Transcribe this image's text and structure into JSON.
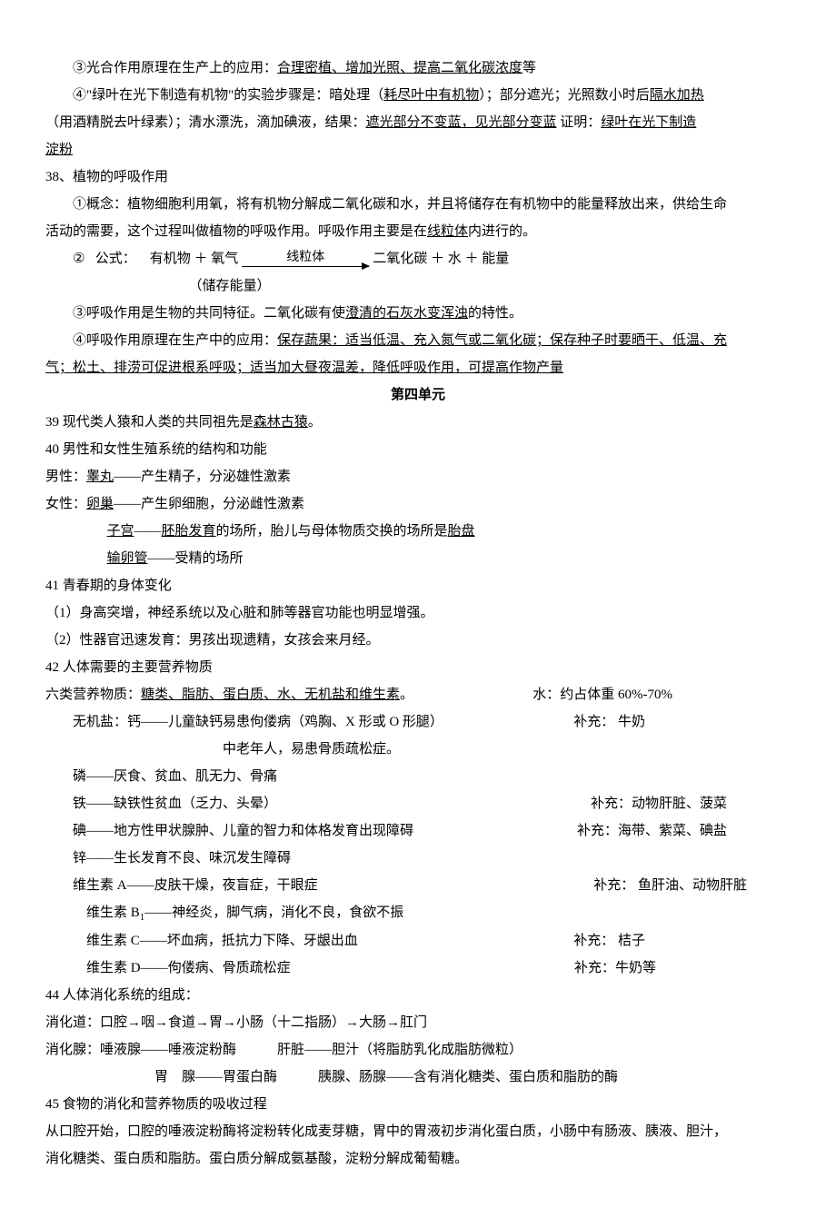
{
  "p1": {
    "pre": "③光合作用原理在生产上的应用：",
    "u": "合理密植、增加光照、提高二氧化碳浓度",
    "post": "等"
  },
  "p2": {
    "a": "④\"绿叶在光下制造有机物\"的实验步骤是：暗处理（",
    "u1": "耗尽叶中有机物",
    "b": "）；部分遮光；光照数小时后",
    "u2": "隔水加热"
  },
  "p3": {
    "a": "（用酒精脱去叶绿素）；清水漂洗，滴加碘液，结果：",
    "u1": "遮光部分不变蓝，见光部分变蓝",
    "b": "  证明：",
    "u2": "绿叶在光下制造"
  },
  "p4u": "淀粉",
  "h38": "38、植物的呼吸作用",
  "p5": {
    "a": "①概念：植物细胞利用氧，将有机物分解成二氧化碳和水，并且将储存在有机物中的能量释放出来，供给生命"
  },
  "p6": {
    "a": "活动的需要，这个过程叫做植物的呼吸作用。呼吸作用主要是在",
    "u": "线粒体",
    "b": "内进行的。"
  },
  "formula": {
    "num": "②",
    "label": "公式：",
    "left": "有机物 ＋ 氧气",
    "top": "线粒体",
    "right": "二氧化碳 ＋ 水 ＋ 能量",
    "note": "（储存能量）"
  },
  "p7": {
    "a": "③呼吸作用是生物的共同特征。二氧化碳有使",
    "u": "澄清的石灰水变浑浊",
    "b": "的特性。"
  },
  "p8": {
    "a": "④呼吸作用原理在生产中的应用：",
    "u": "保存蔬果：适当低温、充入氮气或二氧化碳；保存种子时要晒干、低温、充"
  },
  "p9u": "气；松土、排涝可促进根系呼吸；适当加大昼夜温差，降低呼吸作用，可提高作物产量",
  "title": "第四单元",
  "p10": {
    "a": "39  现代类人猿和人类的共同祖先是",
    "u": "森林古猿",
    "b": "。"
  },
  "p11": "40 男性和女性生殖系统的结构和功能",
  "p12": {
    "a": "男性：",
    "u": "睾丸",
    "b": "——产生精子，分泌雄性激素"
  },
  "p13": {
    "a": "女性：",
    "u": "卵巢",
    "b": "——产生卵细胞，分泌雌性激素"
  },
  "p14": {
    "u1": "子宫",
    "a": "——",
    "u2": "胚胎发育",
    "b": "的场所，胎儿与母体物质交换的场所是",
    "u3": "胎盘"
  },
  "p15": {
    "u": "输卵管",
    "a": "——受精的场所"
  },
  "p16": "41 青春期的身体变化",
  "p17": "（1）身高突增，神经系统以及心脏和肺等器官功能也明显增强。",
  "p18": "（2）性器官迅速发育：男孩出现遗精，女孩会来月经。",
  "p19": "42 人体需要的主要营养物质",
  "p20": {
    "a": "六类营养物质：",
    "u": "糖类、脂肪、蛋白质、水、无机盐和维生素",
    "b": "。",
    "r": "水：约占体重 60%-70%"
  },
  "row1": {
    "l": "无机盐：钙——儿童缺钙易患佝偻病（鸡胸、X 形或 O 形腿）",
    "r": "补充：  牛奶"
  },
  "row1b": "中老年人，易患骨质疏松症。",
  "row2": "磷——厌食、贫血、肌无力、骨痛",
  "row3": {
    "l": "铁——缺铁性贫血（乏力、头晕）",
    "r": "补充：动物肝脏、菠菜"
  },
  "row4": {
    "l": "碘——地方性甲状腺肿、儿童的智力和体格发育出现障碍",
    "r": "补充：海带、紫菜、碘盐"
  },
  "row5": "锌——生长发育不良、味沉发生障碍",
  "row6": {
    "l": "维生素 A——皮肤干燥，夜盲症，干眼症",
    "r": "补充：  鱼肝油、动物肝脏"
  },
  "row7": {
    "a": "维生素 B",
    "sub": "1",
    "b": "——神经炎，脚气病，消化不良，食欲不振"
  },
  "row8": {
    "l": "维生素 C——坏血病，抵抗力下降、牙龈出血",
    "r": "补充：  桔子"
  },
  "row9": {
    "l": "维生素 D——佝偻病、骨质疏松症",
    "r": "补充：牛奶等"
  },
  "p44": "44 人体消化系统的组成：",
  "p44a": "消化道：口腔→咽→食道→胃→小肠（十二指肠）→大肠→肛门",
  "p44b": "消化腺：唾液腺——唾液淀粉酶　　　肝脏——胆汁（将脂肪乳化成脂肪微粒）",
  "p44c": "胃　腺——胃蛋白酶　　　胰腺、肠腺——含有消化糖类、蛋白质和脂肪的酶",
  "p45": "45 食物的消化和营养物质的吸收过程",
  "p45a": "从口腔开始，口腔的唾液淀粉酶将淀粉转化成麦芽糖，胃中的胃液初步消化蛋白质，小肠中有肠液、胰液、胆汁，",
  "p45b": "消化糖类、蛋白质和脂肪。蛋白质分解成氨基酸，淀粉分解成葡萄糖。"
}
